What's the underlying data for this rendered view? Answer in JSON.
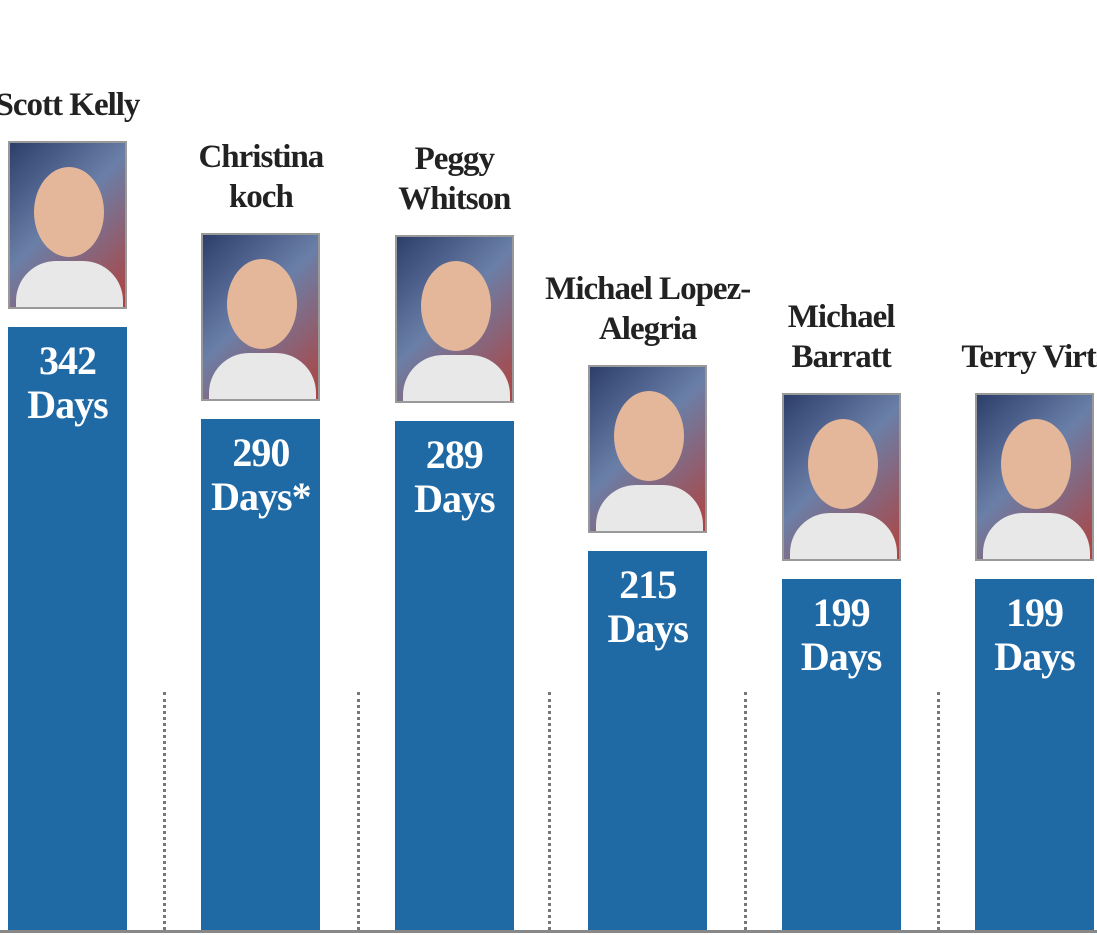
{
  "chart_data": {
    "type": "bar",
    "categories": [
      "Scott Kelly",
      "Christina koch",
      "Peggy Whitson",
      "Michael Lopez-Alegria",
      "Michael Barratt",
      "Terry Virts"
    ],
    "values": [
      342,
      290,
      289,
      215,
      199,
      199
    ],
    "value_labels": [
      "342 Days",
      "290 Days*",
      "289 Days",
      "215 Days",
      "199 Days",
      "199 Days"
    ],
    "color": "#1f69a5"
  }
}
